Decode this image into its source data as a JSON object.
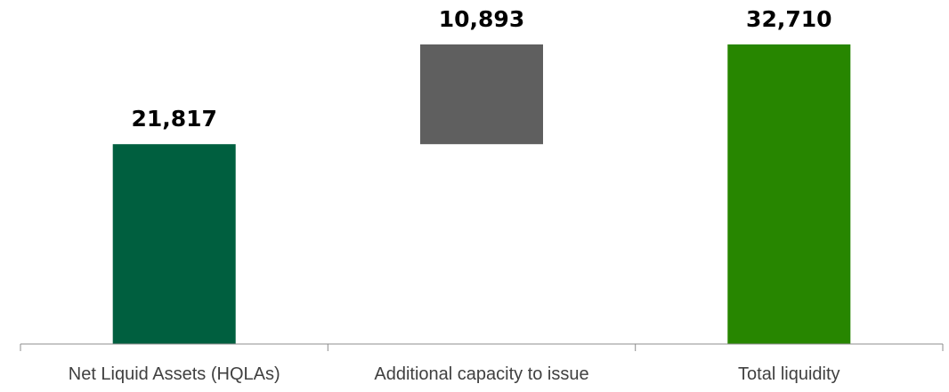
{
  "chart_data": {
    "type": "bar",
    "subtype": "waterfall",
    "title": "",
    "xlabel": "",
    "ylabel": "",
    "categories": [
      "Net Liquid Assets (HQLAs)",
      "Additional capacity to issue",
      "Total liquidity"
    ],
    "values": [
      21817,
      10893,
      32710
    ],
    "value_labels": [
      "21,817",
      "10,893",
      "32,710"
    ],
    "bar_bases": [
      0,
      21817,
      0
    ],
    "bar_colors": [
      "#005F3F",
      "#5F5F5F",
      "#278600"
    ],
    "axis_color": "#8C8C8C",
    "ylim": [
      0,
      32710
    ],
    "grid": false,
    "legend": "none"
  }
}
